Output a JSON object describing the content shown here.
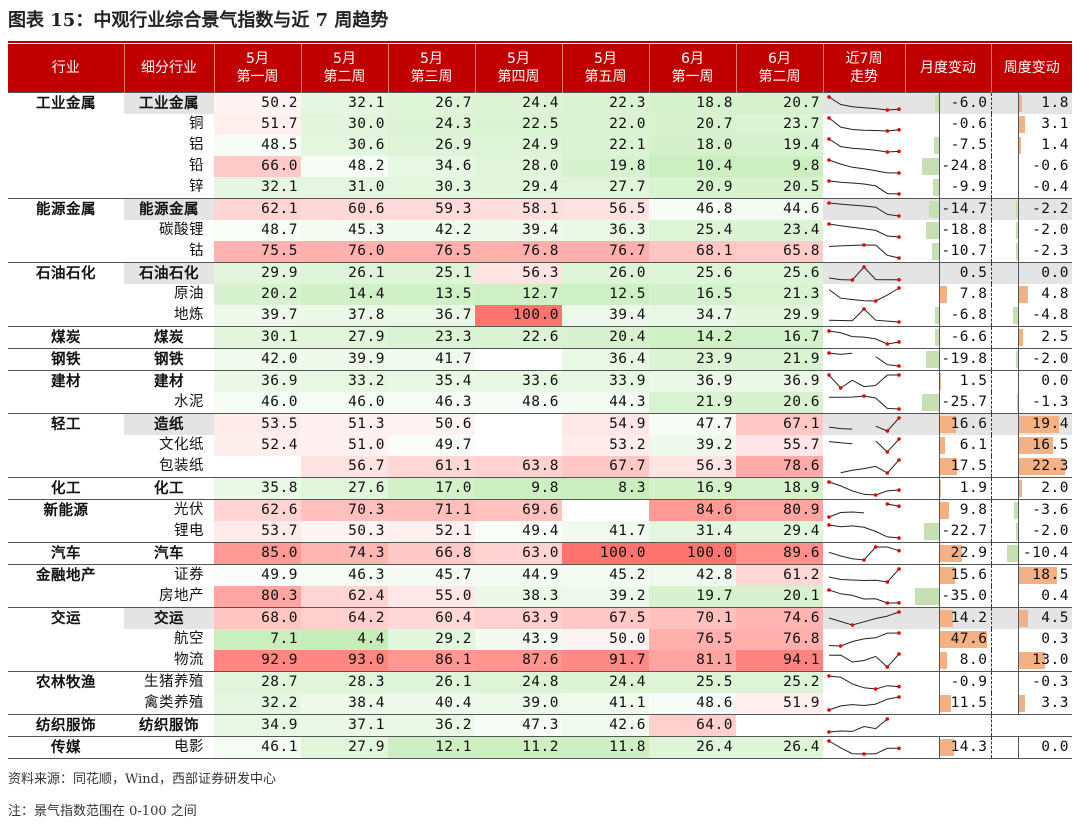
{
  "title": "图表 15：中观行业综合景气指数与近 7 周趋势",
  "headers": {
    "industry": "行业",
    "sub": "细分行业",
    "weeks": [
      [
        "5月",
        "第一周"
      ],
      [
        "5月",
        "第二周"
      ],
      [
        "5月",
        "第三周"
      ],
      [
        "5月",
        "第四周"
      ],
      [
        "5月",
        "第五周"
      ],
      [
        "6月",
        "第一周"
      ],
      [
        "6月",
        "第二周"
      ]
    ],
    "trend": [
      "近7周",
      "走势"
    ],
    "month_change": "月度变动",
    "week_change": "周度变动"
  },
  "colors": {
    "header_bg": "#c00000",
    "positive_bar": "#f4b183",
    "negative_bar": "#c6e0b4",
    "marker": "#e00000"
  },
  "rows": [
    {
      "industry": "工业金属",
      "sub": "工业金属",
      "bold": true,
      "gray": true,
      "values": [
        "50.2",
        "32.1",
        "26.7",
        "24.4",
        "22.3",
        "18.8",
        "20.7"
      ],
      "month": "-6.0",
      "week": "1.8"
    },
    {
      "industry": "",
      "sub": "铜",
      "values": [
        "51.7",
        "30.0",
        "24.3",
        "22.5",
        "22.0",
        "20.7",
        "23.7"
      ],
      "month": "-0.6",
      "week": "3.1"
    },
    {
      "industry": "",
      "sub": "铝",
      "values": [
        "48.5",
        "30.6",
        "26.9",
        "24.9",
        "22.1",
        "18.0",
        "19.4"
      ],
      "month": "-7.5",
      "week": "1.4"
    },
    {
      "industry": "",
      "sub": "铅",
      "values": [
        "66.0",
        "48.2",
        "34.6",
        "28.0",
        "19.8",
        "10.4",
        "9.8"
      ],
      "month": "-24.8",
      "week": "-0.6"
    },
    {
      "industry": "",
      "sub": "锌",
      "values": [
        "32.1",
        "31.0",
        "30.3",
        "29.4",
        "27.7",
        "20.9",
        "20.5"
      ],
      "month": "-9.9",
      "week": "-0.4"
    },
    {
      "industry": "能源金属",
      "sub": "能源金属",
      "bold": true,
      "gray": true,
      "values": [
        "62.1",
        "60.6",
        "59.3",
        "58.1",
        "56.5",
        "46.8",
        "44.6"
      ],
      "month": "-14.7",
      "week": "-2.2"
    },
    {
      "industry": "",
      "sub": "碳酸锂",
      "values": [
        "48.7",
        "45.3",
        "42.2",
        "39.4",
        "36.3",
        "25.4",
        "23.4"
      ],
      "month": "-18.8",
      "week": "-2.0"
    },
    {
      "industry": "",
      "sub": "钴",
      "values": [
        "75.5",
        "76.0",
        "76.5",
        "76.8",
        "76.7",
        "68.1",
        "65.8"
      ],
      "month": "-10.7",
      "week": "-2.3"
    },
    {
      "industry": "石油石化",
      "sub": "石油石化",
      "bold": true,
      "gray": true,
      "values": [
        "29.9",
        "26.1",
        "25.1",
        "56.3",
        "26.0",
        "25.6",
        "25.6"
      ],
      "month": "0.5",
      "week": "0.0"
    },
    {
      "industry": "",
      "sub": "原油",
      "values": [
        "20.2",
        "14.4",
        "13.5",
        "12.7",
        "12.5",
        "16.5",
        "21.3"
      ],
      "month": "7.8",
      "week": "4.8"
    },
    {
      "industry": "",
      "sub": "地炼",
      "values": [
        "39.7",
        "37.8",
        "36.7",
        "100.0",
        "39.4",
        "34.7",
        "29.9"
      ],
      "month": "-6.8",
      "week": "-4.8"
    },
    {
      "industry": "煤炭",
      "sub": "煤炭",
      "bold": true,
      "values": [
        "30.1",
        "27.9",
        "23.3",
        "22.6",
        "20.4",
        "14.2",
        "16.7"
      ],
      "month": "-6.6",
      "week": "2.5"
    },
    {
      "industry": "钢铁",
      "sub": "钢铁",
      "bold": true,
      "values": [
        "42.0",
        "39.9",
        "41.7",
        "",
        "36.4",
        "23.9",
        "21.9"
      ],
      "month": "-19.8",
      "week": "-2.0"
    },
    {
      "industry": "建材",
      "sub": "建材",
      "bold": true,
      "values": [
        "36.9",
        "33.2",
        "35.4",
        "33.6",
        "33.9",
        "36.9",
        "36.9"
      ],
      "month": "1.5",
      "week": "0.0"
    },
    {
      "industry": "",
      "sub": "水泥",
      "values": [
        "46.0",
        "46.0",
        "46.3",
        "48.6",
        "44.3",
        "21.9",
        "20.6"
      ],
      "month": "-25.7",
      "week": "-1.3"
    },
    {
      "industry": "轻工",
      "sub": "造纸",
      "bold": true,
      "gray": true,
      "values": [
        "53.5",
        "51.3",
        "50.6",
        "",
        "54.9",
        "47.7",
        "67.1"
      ],
      "month": "16.6",
      "week": "19.4"
    },
    {
      "industry": "",
      "sub": "文化纸",
      "values": [
        "52.4",
        "51.0",
        "49.7",
        "",
        "53.2",
        "39.2",
        "55.7"
      ],
      "month": "6.1",
      "week": "16.5"
    },
    {
      "industry": "",
      "sub": "包装纸",
      "values": [
        "",
        "56.7",
        "61.1",
        "63.8",
        "67.7",
        "56.3",
        "78.6"
      ],
      "month": "17.5",
      "week": "22.3"
    },
    {
      "industry": "化工",
      "sub": "化工",
      "bold": true,
      "values": [
        "35.8",
        "27.6",
        "17.0",
        "9.8",
        "8.3",
        "16.9",
        "18.9"
      ],
      "month": "1.9",
      "week": "2.0"
    },
    {
      "industry": "新能源",
      "sub": "光伏",
      "values": [
        "62.6",
        "70.3",
        "71.1",
        "69.6",
        "",
        "84.6",
        "80.9"
      ],
      "month": "9.8",
      "week": "-3.6"
    },
    {
      "industry": "",
      "sub": "锂电",
      "values": [
        "53.7",
        "50.3",
        "52.1",
        "49.4",
        "41.7",
        "31.4",
        "29.4"
      ],
      "month": "-22.7",
      "week": "-2.0"
    },
    {
      "industry": "汽车",
      "sub": "汽车",
      "bold": true,
      "values": [
        "85.0",
        "74.3",
        "66.8",
        "63.0",
        "100.0",
        "100.0",
        "89.6"
      ],
      "month": "22.9",
      "week": "-10.4"
    },
    {
      "industry": "金融地产",
      "sub": "证券",
      "values": [
        "49.9",
        "46.3",
        "45.7",
        "44.9",
        "45.2",
        "42.8",
        "61.2"
      ],
      "month": "15.6",
      "week": "18.5"
    },
    {
      "industry": "",
      "sub": "房地产",
      "values": [
        "80.3",
        "62.4",
        "55.0",
        "38.3",
        "39.2",
        "19.7",
        "20.1"
      ],
      "month": "-35.0",
      "week": "0.4"
    },
    {
      "industry": "交运",
      "sub": "交运",
      "bold": true,
      "gray": true,
      "values": [
        "68.0",
        "64.2",
        "60.4",
        "63.9",
        "67.5",
        "70.1",
        "74.6"
      ],
      "month": "14.2",
      "week": "4.5"
    },
    {
      "industry": "",
      "sub": "航空",
      "values": [
        "7.1",
        "4.4",
        "29.2",
        "43.9",
        "50.0",
        "76.5",
        "76.8"
      ],
      "month": "47.6",
      "week": "0.3"
    },
    {
      "industry": "",
      "sub": "物流",
      "values": [
        "92.9",
        "93.0",
        "86.1",
        "87.6",
        "91.7",
        "81.1",
        "94.1"
      ],
      "month": "8.0",
      "week": "13.0"
    },
    {
      "industry": "农林牧渔",
      "sub": "生猪养殖",
      "values": [
        "28.7",
        "28.3",
        "26.1",
        "24.8",
        "24.4",
        "25.5",
        "25.2"
      ],
      "month": "-0.9",
      "week": "-0.3"
    },
    {
      "industry": "",
      "sub": "禽类养殖",
      "values": [
        "32.2",
        "38.4",
        "40.4",
        "39.0",
        "41.1",
        "48.6",
        "51.9"
      ],
      "month": "11.5",
      "week": "3.3"
    },
    {
      "industry": "纺织服饰",
      "sub": "纺织服饰",
      "bold": true,
      "values": [
        "34.9",
        "37.1",
        "36.2",
        "47.3",
        "42.6",
        "64.0",
        ""
      ],
      "month": "",
      "week": ""
    },
    {
      "industry": "传媒",
      "sub": "电影",
      "values": [
        "46.1",
        "27.9",
        "12.1",
        "11.2",
        "11.8",
        "26.4",
        "26.4"
      ],
      "month": "14.3",
      "week": "0.0"
    }
  ],
  "notes": {
    "source": "资料来源：同花顺，Wind，西部证券研发中心",
    "note": "注：景气指数范围在 0-100 之间"
  }
}
